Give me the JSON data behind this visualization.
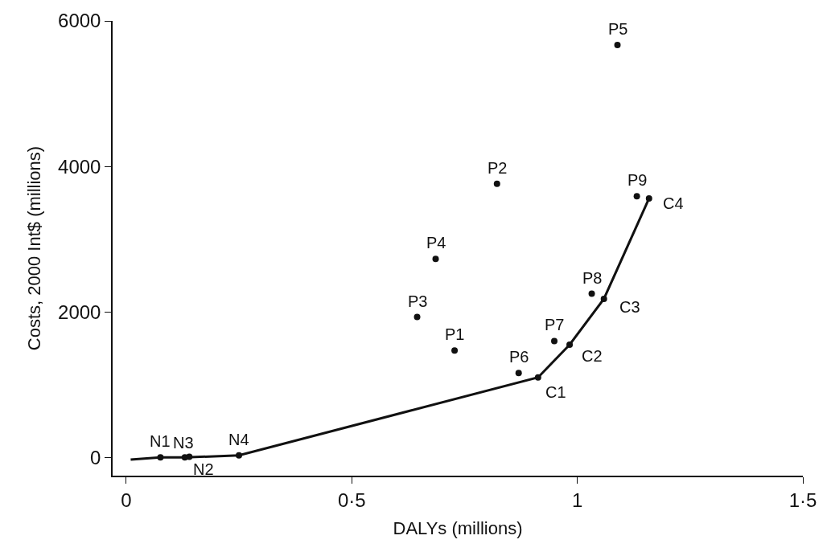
{
  "chart_data": {
    "type": "scatter",
    "xlabel": "DALYs (millions)",
    "ylabel": "Costs, 2000 Int$ (millions)",
    "xlim": [
      -0.03,
      1.5
    ],
    "ylim": [
      -250,
      6000
    ],
    "xticks": [
      0,
      {
        "value": 0.5,
        "label": "0·5"
      },
      1,
      {
        "value": 1.5,
        "label": "1·5"
      }
    ],
    "yticks": [
      0,
      2000,
      4000,
      6000
    ],
    "legend": false,
    "series": [
      {
        "type": "line",
        "color": "#111111",
        "x": [
          0.01,
          0.076,
          0.13,
          0.25,
          0.913,
          0.983,
          1.059,
          1.159
        ],
        "values": [
          -30,
          0,
          0,
          30,
          1100,
          1550,
          2180,
          3560
        ],
        "marker": "none"
      },
      {
        "color": "#111111",
        "x": [
          0.076,
          0.14,
          0.13,
          0.25,
          0.913,
          0.983,
          1.059,
          1.159,
          0.728,
          0.822,
          0.645,
          0.686,
          1.089,
          0.87,
          0.949,
          1.032,
          1.132
        ],
        "values": [
          0,
          10,
          0,
          30,
          1100,
          1550,
          2180,
          3560,
          1470,
          3760,
          1930,
          2730,
          5670,
          1160,
          1600,
          2250,
          3590
        ],
        "marker": "circle"
      }
    ],
    "annotations": [
      {
        "text": "N1",
        "x": 0.076,
        "y": 0
      },
      {
        "text": "N2",
        "x": 0.14,
        "y": 10
      },
      {
        "text": "N3",
        "x": 0.13,
        "y": 0
      },
      {
        "text": "N4",
        "x": 0.25,
        "y": 30
      },
      {
        "text": "C1",
        "x": 0.913,
        "y": 1100
      },
      {
        "text": "C2",
        "x": 0.983,
        "y": 1550
      },
      {
        "text": "C3",
        "x": 1.059,
        "y": 2180
      },
      {
        "text": "C4",
        "x": 1.159,
        "y": 3560
      },
      {
        "text": "P1",
        "x": 0.728,
        "y": 1470
      },
      {
        "text": "P2",
        "x": 0.822,
        "y": 3760
      },
      {
        "text": "P3",
        "x": 0.645,
        "y": 1930
      },
      {
        "text": "P4",
        "x": 0.686,
        "y": 2730
      },
      {
        "text": "P5",
        "x": 1.089,
        "y": 5670
      },
      {
        "text": "P6",
        "x": 0.87,
        "y": 1160
      },
      {
        "text": "P7",
        "x": 0.949,
        "y": 1600
      },
      {
        "text": "P8",
        "x": 1.032,
        "y": 2250
      },
      {
        "text": "P9",
        "x": 1.132,
        "y": 3590
      }
    ]
  }
}
